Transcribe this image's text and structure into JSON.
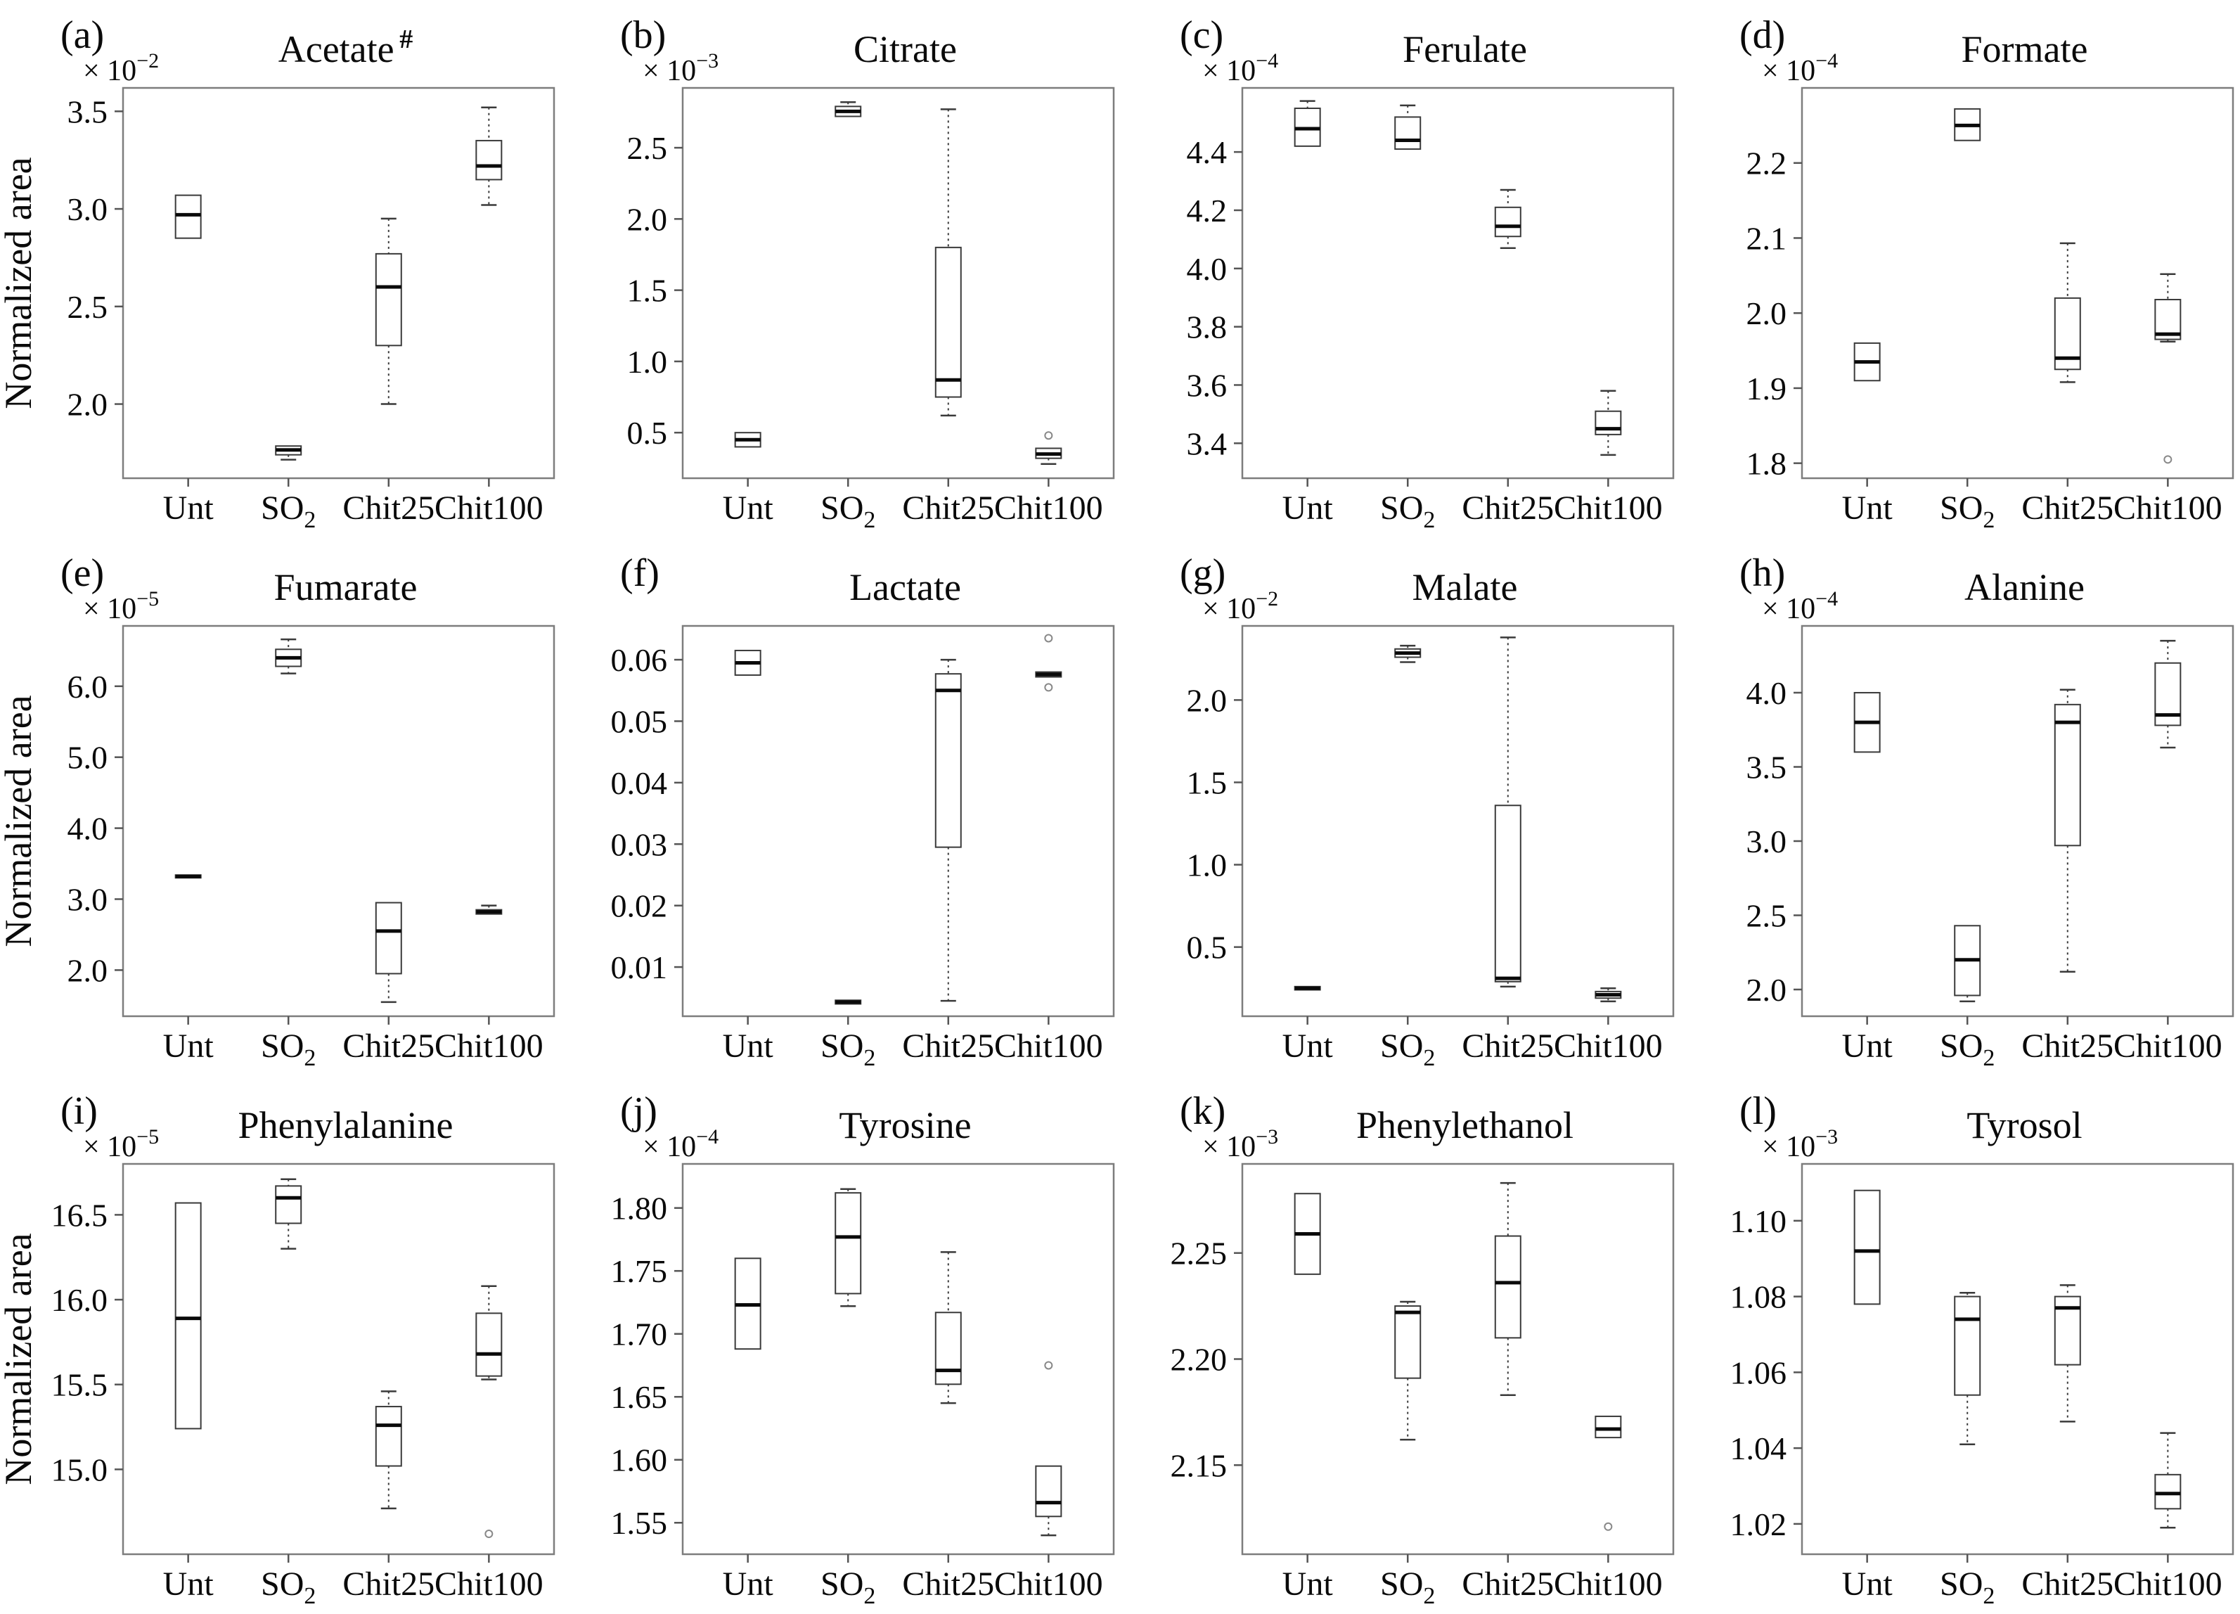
{
  "figure": {
    "y_axis_label": "Normalized area",
    "multiplier_prefix": "× 10",
    "x_categories": [
      {
        "text": "Unt",
        "sub": ""
      },
      {
        "text": "SO",
        "sub": "2"
      },
      {
        "text": "Chit25",
        "sub": ""
      },
      {
        "text": "Chit100",
        "sub": ""
      }
    ]
  },
  "chart_data": [
    {
      "type": "box",
      "panel_label": "(a)",
      "title": "Acetate",
      "title_suffix": "#",
      "exponent": "−2",
      "show_y_axis_label": true,
      "ylim": [
        1.62,
        3.62
      ],
      "tick_values": [
        3.5,
        3.0,
        2.5,
        2.0
      ],
      "tick_labels": [
        "3.5",
        "3.0",
        "2.5",
        "2.0"
      ],
      "boxes": [
        {
          "category": "Unt",
          "whisker_low": 2.85,
          "q1": 2.85,
          "median": 2.97,
          "q3": 3.07,
          "whisker_high": 3.07,
          "outliers": []
        },
        {
          "category": "SO2",
          "whisker_low": 1.715,
          "q1": 1.74,
          "median": 1.765,
          "q3": 1.785,
          "whisker_high": 1.795,
          "outliers": []
        },
        {
          "category": "Chit25",
          "whisker_low": 2.0,
          "q1": 2.3,
          "median": 2.6,
          "q3": 2.77,
          "whisker_high": 2.95,
          "outliers": []
        },
        {
          "category": "Chit100",
          "whisker_low": 3.02,
          "q1": 3.15,
          "median": 3.22,
          "q3": 3.35,
          "whisker_high": 3.52,
          "outliers": []
        }
      ]
    },
    {
      "type": "box",
      "panel_label": "(b)",
      "title": "Citrate",
      "title_suffix": "",
      "exponent": "−3",
      "show_y_axis_label": false,
      "ylim": [
        0.18,
        2.92
      ],
      "tick_values": [
        2.5,
        2.0,
        1.5,
        1.0,
        0.5
      ],
      "tick_labels": [
        "2.5",
        "2.0",
        "1.5",
        "1.0",
        "0.5"
      ],
      "boxes": [
        {
          "category": "Unt",
          "whisker_low": 0.4,
          "q1": 0.4,
          "median": 0.45,
          "q3": 0.5,
          "whisker_high": 0.5,
          "outliers": []
        },
        {
          "category": "SO2",
          "whisker_low": 2.72,
          "q1": 2.72,
          "median": 2.755,
          "q3": 2.79,
          "whisker_high": 2.82,
          "outliers": []
        },
        {
          "category": "Chit25",
          "whisker_low": 0.62,
          "q1": 0.75,
          "median": 0.87,
          "q3": 1.8,
          "whisker_high": 2.77,
          "outliers": []
        },
        {
          "category": "Chit100",
          "whisker_low": 0.28,
          "q1": 0.32,
          "median": 0.35,
          "q3": 0.39,
          "whisker_high": 0.39,
          "outliers": [
            0.48
          ]
        }
      ]
    },
    {
      "type": "box",
      "panel_label": "(c)",
      "title": "Ferulate",
      "title_suffix": "",
      "exponent": "−4",
      "show_y_axis_label": false,
      "ylim": [
        3.28,
        4.62
      ],
      "tick_values": [
        4.4,
        4.2,
        4.0,
        3.8,
        3.6,
        3.4
      ],
      "tick_labels": [
        "4.4",
        "4.2",
        "4.0",
        "3.8",
        "3.6",
        "3.4"
      ],
      "boxes": [
        {
          "category": "Unt",
          "whisker_low": 4.42,
          "q1": 4.42,
          "median": 4.48,
          "q3": 4.55,
          "whisker_high": 4.575,
          "outliers": []
        },
        {
          "category": "SO2",
          "whisker_low": 4.41,
          "q1": 4.41,
          "median": 4.44,
          "q3": 4.52,
          "whisker_high": 4.56,
          "outliers": []
        },
        {
          "category": "Chit25",
          "whisker_low": 4.07,
          "q1": 4.11,
          "median": 4.145,
          "q3": 4.21,
          "whisker_high": 4.27,
          "outliers": []
        },
        {
          "category": "Chit100",
          "whisker_low": 3.36,
          "q1": 3.43,
          "median": 3.45,
          "q3": 3.51,
          "whisker_high": 3.58,
          "outliers": []
        }
      ]
    },
    {
      "type": "box",
      "panel_label": "(d)",
      "title": "Formate",
      "title_suffix": "",
      "exponent": "−4",
      "show_y_axis_label": false,
      "ylim": [
        1.78,
        2.3
      ],
      "tick_values": [
        2.2,
        2.1,
        2.0,
        1.9,
        1.8
      ],
      "tick_labels": [
        "2.2",
        "2.1",
        "2.0",
        "1.9",
        "1.8"
      ],
      "boxes": [
        {
          "category": "Unt",
          "whisker_low": 1.91,
          "q1": 1.91,
          "median": 1.935,
          "q3": 1.96,
          "whisker_high": 1.96,
          "outliers": []
        },
        {
          "category": "SO2",
          "whisker_low": 2.23,
          "q1": 2.23,
          "median": 2.25,
          "q3": 2.272,
          "whisker_high": 2.272,
          "outliers": []
        },
        {
          "category": "Chit25",
          "whisker_low": 1.908,
          "q1": 1.925,
          "median": 1.94,
          "q3": 2.02,
          "whisker_high": 2.093,
          "outliers": []
        },
        {
          "category": "Chit100",
          "whisker_low": 1.962,
          "q1": 1.965,
          "median": 1.972,
          "q3": 2.018,
          "whisker_high": 2.052,
          "outliers": [
            1.805
          ]
        }
      ]
    },
    {
      "type": "box",
      "panel_label": "(e)",
      "title": "Fumarate",
      "title_suffix": "",
      "exponent": "−5",
      "show_y_axis_label": true,
      "ylim": [
        1.35,
        6.85
      ],
      "tick_values": [
        6.0,
        5.0,
        4.0,
        3.0,
        2.0
      ],
      "tick_labels": [
        "6.0",
        "5.0",
        "4.0",
        "3.0",
        "2.0"
      ],
      "boxes": [
        {
          "category": "Unt",
          "whisker_low": 3.3,
          "q1": 3.3,
          "median": 3.32,
          "q3": 3.34,
          "whisker_high": 3.34,
          "outliers": []
        },
        {
          "category": "SO2",
          "whisker_low": 6.18,
          "q1": 6.28,
          "median": 6.4,
          "q3": 6.52,
          "whisker_high": 6.66,
          "outliers": []
        },
        {
          "category": "Chit25",
          "whisker_low": 1.55,
          "q1": 1.95,
          "median": 2.55,
          "q3": 2.95,
          "whisker_high": 2.95,
          "outliers": []
        },
        {
          "category": "Chit100",
          "whisker_low": 2.77,
          "q1": 2.79,
          "median": 2.82,
          "q3": 2.85,
          "whisker_high": 2.91,
          "outliers": []
        }
      ]
    },
    {
      "type": "box",
      "panel_label": "(f)",
      "title": "Lactate",
      "title_suffix": "",
      "exponent": null,
      "show_y_axis_label": false,
      "ylim": [
        0.002,
        0.0655
      ],
      "tick_values": [
        0.06,
        0.05,
        0.04,
        0.03,
        0.02,
        0.01
      ],
      "tick_labels": [
        "0.06",
        "0.05",
        "0.04",
        "0.03",
        "0.02",
        "0.01"
      ],
      "boxes": [
        {
          "category": "Unt",
          "whisker_low": 0.0575,
          "q1": 0.0575,
          "median": 0.0595,
          "q3": 0.0615,
          "whisker_high": 0.0615,
          "outliers": []
        },
        {
          "category": "SO2",
          "whisker_low": 0.004,
          "q1": 0.004,
          "median": 0.0043,
          "q3": 0.0046,
          "whisker_high": 0.0046,
          "outliers": []
        },
        {
          "category": "Chit25",
          "whisker_low": 0.0045,
          "q1": 0.0295,
          "median": 0.055,
          "q3": 0.0577,
          "whisker_high": 0.06,
          "outliers": []
        },
        {
          "category": "Chit100",
          "whisker_low": 0.0572,
          "q1": 0.0572,
          "median": 0.0576,
          "q3": 0.058,
          "whisker_high": 0.058,
          "outliers": [
            0.0635,
            0.0555
          ]
        }
      ]
    },
    {
      "type": "box",
      "panel_label": "(g)",
      "title": "Malate",
      "title_suffix": "",
      "exponent": "−2",
      "show_y_axis_label": false,
      "ylim": [
        0.08,
        2.45
      ],
      "tick_values": [
        2.0,
        1.5,
        1.0,
        0.5
      ],
      "tick_labels": [
        "2.0",
        "1.5",
        "1.0",
        "0.5"
      ],
      "boxes": [
        {
          "category": "Unt",
          "whisker_low": 0.24,
          "q1": 0.24,
          "median": 0.25,
          "q3": 0.26,
          "whisker_high": 0.26,
          "outliers": []
        },
        {
          "category": "SO2",
          "whisker_low": 2.23,
          "q1": 2.26,
          "median": 2.285,
          "q3": 2.31,
          "whisker_high": 2.33,
          "outliers": []
        },
        {
          "category": "Chit25",
          "whisker_low": 0.26,
          "q1": 0.29,
          "median": 0.31,
          "q3": 1.36,
          "whisker_high": 2.38,
          "outliers": []
        },
        {
          "category": "Chit100",
          "whisker_low": 0.17,
          "q1": 0.19,
          "median": 0.21,
          "q3": 0.23,
          "whisker_high": 0.25,
          "outliers": []
        }
      ]
    },
    {
      "type": "box",
      "panel_label": "(h)",
      "title": "Alanine",
      "title_suffix": "",
      "exponent": "−4",
      "show_y_axis_label": false,
      "ylim": [
        1.82,
        4.45
      ],
      "tick_values": [
        4.0,
        3.5,
        3.0,
        2.5,
        2.0
      ],
      "tick_labels": [
        "4.0",
        "3.5",
        "3.0",
        "2.5",
        "2.0"
      ],
      "boxes": [
        {
          "category": "Unt",
          "whisker_low": 3.6,
          "q1": 3.6,
          "median": 3.8,
          "q3": 4.0,
          "whisker_high": 4.0,
          "outliers": []
        },
        {
          "category": "SO2",
          "whisker_low": 1.92,
          "q1": 1.96,
          "median": 2.2,
          "q3": 2.43,
          "whisker_high": 2.43,
          "outliers": []
        },
        {
          "category": "Chit25",
          "whisker_low": 2.12,
          "q1": 2.97,
          "median": 3.8,
          "q3": 3.92,
          "whisker_high": 4.02,
          "outliers": []
        },
        {
          "category": "Chit100",
          "whisker_low": 3.63,
          "q1": 3.78,
          "median": 3.85,
          "q3": 4.2,
          "whisker_high": 4.35,
          "outliers": []
        }
      ]
    },
    {
      "type": "box",
      "panel_label": "(i)",
      "title": "Phenylalanine",
      "title_suffix": "",
      "exponent": "−5",
      "show_y_axis_label": true,
      "ylim": [
        14.5,
        16.8
      ],
      "tick_values": [
        16.5,
        16.0,
        15.5,
        15.0
      ],
      "tick_labels": [
        "16.5",
        "16.0",
        "15.5",
        "15.0"
      ],
      "boxes": [
        {
          "category": "Unt",
          "whisker_low": 15.24,
          "q1": 15.24,
          "median": 15.89,
          "q3": 16.57,
          "whisker_high": 16.57,
          "outliers": []
        },
        {
          "category": "SO2",
          "whisker_low": 16.3,
          "q1": 16.45,
          "median": 16.6,
          "q3": 16.67,
          "whisker_high": 16.71,
          "outliers": []
        },
        {
          "category": "Chit25",
          "whisker_low": 14.77,
          "q1": 15.02,
          "median": 15.26,
          "q3": 15.37,
          "whisker_high": 15.46,
          "outliers": []
        },
        {
          "category": "Chit100",
          "whisker_low": 15.53,
          "q1": 15.55,
          "median": 15.68,
          "q3": 15.92,
          "whisker_high": 16.08,
          "outliers": [
            14.62
          ]
        }
      ]
    },
    {
      "type": "box",
      "panel_label": "(j)",
      "title": "Tyrosine",
      "title_suffix": "",
      "exponent": "−4",
      "show_y_axis_label": false,
      "ylim": [
        1.525,
        1.835
      ],
      "tick_values": [
        1.8,
        1.75,
        1.7,
        1.65,
        1.6,
        1.55
      ],
      "tick_labels": [
        "1.80",
        "1.75",
        "1.70",
        "1.65",
        "1.60",
        "1.55"
      ],
      "boxes": [
        {
          "category": "Unt",
          "whisker_low": 1.688,
          "q1": 1.688,
          "median": 1.723,
          "q3": 1.76,
          "whisker_high": 1.76,
          "outliers": []
        },
        {
          "category": "SO2",
          "whisker_low": 1.722,
          "q1": 1.732,
          "median": 1.777,
          "q3": 1.812,
          "whisker_high": 1.815,
          "outliers": []
        },
        {
          "category": "Chit25",
          "whisker_low": 1.645,
          "q1": 1.66,
          "median": 1.671,
          "q3": 1.717,
          "whisker_high": 1.765,
          "outliers": []
        },
        {
          "category": "Chit100",
          "whisker_low": 1.54,
          "q1": 1.555,
          "median": 1.566,
          "q3": 1.595,
          "whisker_high": 1.595,
          "outliers": [
            1.675
          ]
        }
      ]
    },
    {
      "type": "box",
      "panel_label": "(k)",
      "title": "Phenylethanol",
      "title_suffix": "",
      "exponent": "−3",
      "show_y_axis_label": false,
      "ylim": [
        2.108,
        2.292
      ],
      "tick_values": [
        2.25,
        2.2,
        2.15
      ],
      "tick_labels": [
        "2.25",
        "2.20",
        "2.15"
      ],
      "boxes": [
        {
          "category": "Unt",
          "whisker_low": 2.24,
          "q1": 2.24,
          "median": 2.259,
          "q3": 2.278,
          "whisker_high": 2.278,
          "outliers": []
        },
        {
          "category": "SO2",
          "whisker_low": 2.162,
          "q1": 2.191,
          "median": 2.222,
          "q3": 2.225,
          "whisker_high": 2.227,
          "outliers": []
        },
        {
          "category": "Chit25",
          "whisker_low": 2.183,
          "q1": 2.21,
          "median": 2.236,
          "q3": 2.258,
          "whisker_high": 2.283,
          "outliers": []
        },
        {
          "category": "Chit100",
          "whisker_low": 2.163,
          "q1": 2.163,
          "median": 2.167,
          "q3": 2.173,
          "whisker_high": 2.173,
          "outliers": [
            2.121
          ]
        }
      ]
    },
    {
      "type": "box",
      "panel_label": "(l)",
      "title": "Tyrosol",
      "title_suffix": "",
      "exponent": "−3",
      "show_y_axis_label": false,
      "ylim": [
        1.012,
        1.115
      ],
      "tick_values": [
        1.1,
        1.08,
        1.06,
        1.04,
        1.02
      ],
      "tick_labels": [
        "1.10",
        "1.08",
        "1.06",
        "1.04",
        "1.02"
      ],
      "boxes": [
        {
          "category": "Unt",
          "whisker_low": 1.078,
          "q1": 1.078,
          "median": 1.092,
          "q3": 1.108,
          "whisker_high": 1.108,
          "outliers": []
        },
        {
          "category": "SO2",
          "whisker_low": 1.041,
          "q1": 1.054,
          "median": 1.074,
          "q3": 1.08,
          "whisker_high": 1.081,
          "outliers": []
        },
        {
          "category": "Chit25",
          "whisker_low": 1.047,
          "q1": 1.062,
          "median": 1.077,
          "q3": 1.08,
          "whisker_high": 1.083,
          "outliers": []
        },
        {
          "category": "Chit100",
          "whisker_low": 1.019,
          "q1": 1.024,
          "median": 1.028,
          "q3": 1.033,
          "whisker_high": 1.044,
          "outliers": []
        }
      ]
    }
  ]
}
